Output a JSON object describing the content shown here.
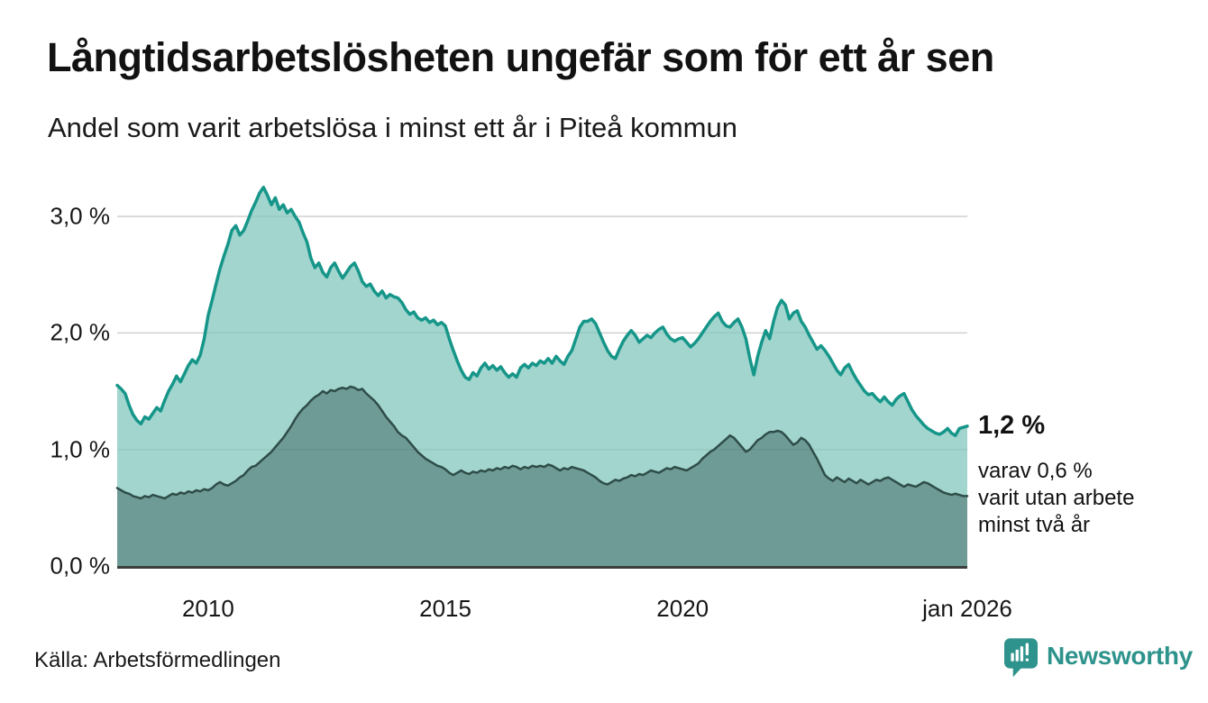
{
  "header": {
    "title": "Långtidsarbetslösheten ungefär som för ett år sen",
    "subtitle": "Andel som varit arbetslösa i minst ett år i Piteå kommun"
  },
  "annotation": {
    "value_label": "1,2 %",
    "detail_lines": [
      "varav 0,6 %",
      "varit utan arbete",
      "minst två år"
    ]
  },
  "footer": {
    "source": "Källa: Arbetsförmedlingen",
    "brand": "Newsworthy",
    "brand_color": "#2e938c",
    "brand_icon": "newsworthy-bars-logo-icon"
  },
  "colors": {
    "accent_teal": "#169689",
    "light_fill": "#a1d5ce",
    "dark_stroke": "#2f4d48",
    "dark_fill": "#6f9b96",
    "gridline": "#dcdcdc",
    "baseline": "#3d3d3d",
    "text": "#121212"
  },
  "chart_data": {
    "type": "area",
    "title": "Långtidsarbetslösheten ungefär som för ett år sen",
    "subtitle": "Andel som varit arbetslösa i minst ett år i Piteå kommun",
    "unit": "%",
    "frequency": "monthly",
    "x_start": "feb 2008",
    "x_end": "jan 2026",
    "ylim": [
      0,
      3.4
    ],
    "grid": "horizontal",
    "gridlines": [
      1.0,
      2.0,
      3.0
    ],
    "yticks": [
      {
        "label": "3,0 %",
        "value": 3.0
      },
      {
        "label": "2,0 %",
        "value": 2.0
      },
      {
        "label": "1,0 %",
        "value": 1.0
      },
      {
        "label": "0,0 %",
        "value": 0.0
      }
    ],
    "xticks": [
      {
        "label": "2010",
        "month_index": 23
      },
      {
        "label": "2015",
        "month_index": 83
      },
      {
        "label": "2020",
        "month_index": 143
      },
      {
        "label": "jan 2026",
        "month_index": 215
      }
    ],
    "end_labels": {
      "minst_ett_ar": "1,2 %",
      "minst_tva_ar": "0,6 %"
    },
    "series": [
      {
        "name": "Andel arbetslösa minst ett år",
        "color": "#169689",
        "fill": "#a1d5ce",
        "values": [
          1.55,
          1.52,
          1.48,
          1.38,
          1.3,
          1.25,
          1.22,
          1.28,
          1.26,
          1.31,
          1.36,
          1.33,
          1.42,
          1.5,
          1.56,
          1.63,
          1.58,
          1.65,
          1.72,
          1.77,
          1.74,
          1.81,
          1.95,
          2.15,
          2.28,
          2.42,
          2.55,
          2.66,
          2.76,
          2.88,
          2.92,
          2.84,
          2.88,
          2.96,
          3.05,
          3.12,
          3.2,
          3.25,
          3.18,
          3.1,
          3.16,
          3.06,
          3.1,
          3.03,
          3.06,
          3.0,
          2.95,
          2.86,
          2.78,
          2.64,
          2.56,
          2.6,
          2.52,
          2.48,
          2.56,
          2.6,
          2.53,
          2.47,
          2.52,
          2.57,
          2.6,
          2.53,
          2.44,
          2.4,
          2.42,
          2.36,
          2.32,
          2.36,
          2.3,
          2.33,
          2.31,
          2.3,
          2.26,
          2.2,
          2.16,
          2.18,
          2.13,
          2.11,
          2.13,
          2.09,
          2.11,
          2.07,
          2.09,
          2.06,
          1.95,
          1.85,
          1.76,
          1.68,
          1.62,
          1.6,
          1.66,
          1.63,
          1.7,
          1.74,
          1.69,
          1.72,
          1.68,
          1.71,
          1.66,
          1.62,
          1.65,
          1.62,
          1.7,
          1.73,
          1.7,
          1.74,
          1.72,
          1.76,
          1.74,
          1.78,
          1.74,
          1.8,
          1.76,
          1.73,
          1.8,
          1.85,
          1.95,
          2.05,
          2.1,
          2.1,
          2.12,
          2.08,
          2.0,
          1.92,
          1.85,
          1.8,
          1.78,
          1.86,
          1.93,
          1.98,
          2.02,
          1.98,
          1.92,
          1.95,
          1.98,
          1.96,
          2.0,
          2.03,
          2.05,
          1.99,
          1.95,
          1.93,
          1.95,
          1.96,
          1.92,
          1.88,
          1.91,
          1.95,
          2.0,
          2.05,
          2.1,
          2.14,
          2.17,
          2.1,
          2.06,
          2.05,
          2.09,
          2.12,
          2.05,
          1.95,
          1.78,
          1.64,
          1.8,
          1.92,
          2.02,
          1.95,
          2.1,
          2.22,
          2.28,
          2.24,
          2.12,
          2.17,
          2.19,
          2.1,
          2.05,
          1.98,
          1.92,
          1.86,
          1.89,
          1.85,
          1.8,
          1.74,
          1.68,
          1.64,
          1.7,
          1.73,
          1.66,
          1.6,
          1.55,
          1.5,
          1.47,
          1.48,
          1.44,
          1.41,
          1.45,
          1.41,
          1.38,
          1.43,
          1.46,
          1.48,
          1.41,
          1.34,
          1.29,
          1.25,
          1.21,
          1.18,
          1.16,
          1.14,
          1.13,
          1.15,
          1.18,
          1.14,
          1.12,
          1.18,
          1.19,
          1.2
        ]
      },
      {
        "name": "varav arbetslösa minst två år",
        "color": "#2f4d48",
        "fill": "#6f9b96",
        "values": [
          0.67,
          0.65,
          0.63,
          0.62,
          0.6,
          0.59,
          0.58,
          0.6,
          0.59,
          0.61,
          0.6,
          0.59,
          0.58,
          0.6,
          0.62,
          0.61,
          0.63,
          0.62,
          0.64,
          0.63,
          0.65,
          0.64,
          0.66,
          0.65,
          0.67,
          0.7,
          0.72,
          0.7,
          0.69,
          0.71,
          0.73,
          0.76,
          0.78,
          0.82,
          0.85,
          0.86,
          0.89,
          0.92,
          0.95,
          0.98,
          1.02,
          1.06,
          1.1,
          1.15,
          1.2,
          1.26,
          1.31,
          1.35,
          1.38,
          1.42,
          1.45,
          1.47,
          1.5,
          1.48,
          1.51,
          1.5,
          1.52,
          1.53,
          1.52,
          1.54,
          1.53,
          1.51,
          1.52,
          1.48,
          1.45,
          1.42,
          1.38,
          1.33,
          1.28,
          1.24,
          1.2,
          1.15,
          1.12,
          1.1,
          1.06,
          1.02,
          0.98,
          0.95,
          0.92,
          0.9,
          0.88,
          0.86,
          0.85,
          0.83,
          0.8,
          0.78,
          0.8,
          0.82,
          0.8,
          0.79,
          0.81,
          0.8,
          0.82,
          0.81,
          0.83,
          0.82,
          0.84,
          0.83,
          0.85,
          0.84,
          0.86,
          0.85,
          0.83,
          0.85,
          0.84,
          0.86,
          0.85,
          0.86,
          0.85,
          0.87,
          0.86,
          0.84,
          0.82,
          0.84,
          0.83,
          0.85,
          0.84,
          0.83,
          0.82,
          0.8,
          0.78,
          0.76,
          0.73,
          0.71,
          0.7,
          0.72,
          0.74,
          0.73,
          0.75,
          0.76,
          0.78,
          0.77,
          0.79,
          0.78,
          0.8,
          0.82,
          0.81,
          0.8,
          0.82,
          0.84,
          0.83,
          0.85,
          0.84,
          0.83,
          0.82,
          0.84,
          0.86,
          0.88,
          0.92,
          0.95,
          0.98,
          1.0,
          1.03,
          1.06,
          1.09,
          1.12,
          1.1,
          1.06,
          1.02,
          0.98,
          1.0,
          1.04,
          1.08,
          1.1,
          1.13,
          1.15,
          1.15,
          1.16,
          1.15,
          1.12,
          1.08,
          1.04,
          1.06,
          1.1,
          1.08,
          1.04,
          0.98,
          0.92,
          0.85,
          0.78,
          0.75,
          0.73,
          0.76,
          0.74,
          0.72,
          0.75,
          0.73,
          0.71,
          0.74,
          0.72,
          0.7,
          0.72,
          0.74,
          0.73,
          0.75,
          0.76,
          0.74,
          0.72,
          0.7,
          0.68,
          0.7,
          0.69,
          0.68,
          0.7,
          0.72,
          0.71,
          0.69,
          0.67,
          0.65,
          0.63,
          0.62,
          0.61,
          0.62,
          0.61,
          0.6,
          0.6
        ]
      }
    ]
  }
}
